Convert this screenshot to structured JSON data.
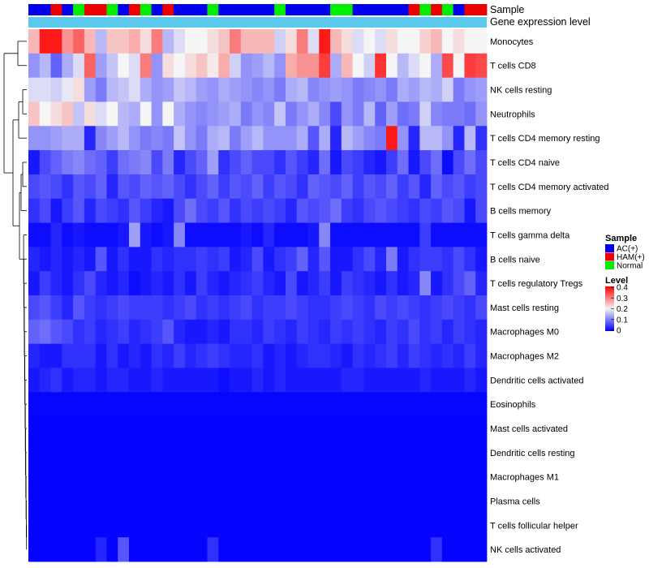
{
  "chart_data": {
    "type": "heatmap",
    "title": "",
    "columns": 41,
    "annotations": {
      "sample": {
        "label": "Sample",
        "values": [
          "AC(+)",
          "AC(+)",
          "HAM(+)",
          "AC(+)",
          "Normal",
          "HAM(+)",
          "HAM(+)",
          "Normal",
          "AC(+)",
          "HAM(+)",
          "Normal",
          "AC(+)",
          "HAM(+)",
          "AC(+)",
          "AC(+)",
          "AC(+)",
          "Normal",
          "AC(+)",
          "AC(+)",
          "AC(+)",
          "AC(+)",
          "AC(+)",
          "Normal",
          "AC(+)",
          "AC(+)",
          "AC(+)",
          "AC(+)",
          "Normal",
          "Normal",
          "AC(+)",
          "AC(+)",
          "AC(+)",
          "AC(+)",
          "AC(+)",
          "HAM(+)",
          "Normal",
          "HAM(+)",
          "Normal",
          "AC(+)",
          "HAM(+)",
          "HAM(+)"
        ]
      },
      "gene_expression": {
        "label": "Gene expression level",
        "color": "#5bc8ee"
      }
    },
    "rows": [
      {
        "label": "Monocytes",
        "values": [
          0.25,
          0.38,
          0.38,
          0.28,
          0.32,
          0.25,
          0.15,
          0.24,
          0.24,
          0.26,
          0.22,
          0.3,
          0.15,
          0.18,
          0.2,
          0.2,
          0.22,
          0.24,
          0.3,
          0.25,
          0.25,
          0.25,
          0.17,
          0.22,
          0.3,
          0.18,
          0.38,
          0.25,
          0.22,
          0.18,
          0.2,
          0.18,
          0.22,
          0.2,
          0.2,
          0.23,
          0.25,
          0.2,
          0.22,
          0.2,
          0.2
        ]
      },
      {
        "label": "T cells CD8",
        "values": [
          0.12,
          0.15,
          0.08,
          0.14,
          0.18,
          0.32,
          0.13,
          0.16,
          0.2,
          0.18,
          0.3,
          0.12,
          0.22,
          0.2,
          0.22,
          0.24,
          0.21,
          0.26,
          0.17,
          0.12,
          0.13,
          0.15,
          0.12,
          0.26,
          0.28,
          0.28,
          0.35,
          0.14,
          0.25,
          0.2,
          0.17,
          0.36,
          0.2,
          0.15,
          0.18,
          0.2,
          0.14,
          0.34,
          0.2,
          0.35,
          0.34
        ]
      },
      {
        "label": "NK cells resting",
        "values": [
          0.18,
          0.18,
          0.17,
          0.19,
          0.22,
          0.13,
          0.1,
          0.15,
          0.16,
          0.18,
          0.14,
          0.12,
          0.13,
          0.16,
          0.15,
          0.13,
          0.12,
          0.14,
          0.13,
          0.12,
          0.11,
          0.12,
          0.1,
          0.14,
          0.15,
          0.11,
          0.12,
          0.13,
          0.12,
          0.1,
          0.11,
          0.12,
          0.1,
          0.14,
          0.13,
          0.15,
          0.14,
          0.17,
          0.1,
          0.12,
          0.13
        ]
      },
      {
        "label": "Neutrophils",
        "values": [
          0.24,
          0.2,
          0.22,
          0.24,
          0.16,
          0.22,
          0.18,
          0.2,
          0.15,
          0.14,
          0.2,
          0.12,
          0.2,
          0.14,
          0.12,
          0.11,
          0.12,
          0.13,
          0.14,
          0.1,
          0.12,
          0.11,
          0.16,
          0.1,
          0.12,
          0.14,
          0.11,
          0.06,
          0.12,
          0.1,
          0.15,
          0.08,
          0.13,
          0.09,
          0.1,
          0.17,
          0.11,
          0.1,
          0.1,
          0.09,
          0.12
        ]
      },
      {
        "label": "T cells CD4 memory resting",
        "values": [
          0.12,
          0.12,
          0.13,
          0.14,
          0.14,
          0.03,
          0.11,
          0.13,
          0.15,
          0.12,
          0.1,
          0.11,
          0.1,
          0.16,
          0.12,
          0.1,
          0.14,
          0.15,
          0.1,
          0.13,
          0.15,
          0.12,
          0.12,
          0.12,
          0.14,
          0.07,
          0.14,
          0.03,
          0.15,
          0.13,
          0.11,
          0.1,
          0.38,
          0.12,
          0.03,
          0.15,
          0.15,
          0.12,
          0.03,
          0.15,
          0.04
        ]
      },
      {
        "label": "T cells CD4 naive",
        "values": [
          0.02,
          0.06,
          0.08,
          0.1,
          0.11,
          0.09,
          0.08,
          0.05,
          0.09,
          0.1,
          0.11,
          0.06,
          0.1,
          0.03,
          0.06,
          0.08,
          0.13,
          0.04,
          0.06,
          0.08,
          0.06,
          0.06,
          0.04,
          0.07,
          0.05,
          0.03,
          0.09,
          0.02,
          0.06,
          0.05,
          0.03,
          0.02,
          0.05,
          0.09,
          0.02,
          0.06,
          0.09,
          0.01,
          0.06,
          0.09,
          0.06
        ]
      },
      {
        "label": "T cells CD4 memory activated",
        "values": [
          0.06,
          0.07,
          0.06,
          0.04,
          0.07,
          0.06,
          0.08,
          0.03,
          0.07,
          0.06,
          0.08,
          0.07,
          0.08,
          0.06,
          0.04,
          0.06,
          0.08,
          0.05,
          0.07,
          0.06,
          0.08,
          0.05,
          0.07,
          0.06,
          0.04,
          0.08,
          0.07,
          0.06,
          0.08,
          0.05,
          0.07,
          0.06,
          0.08,
          0.05,
          0.07,
          0.03,
          0.08,
          0.06,
          0.07,
          0.05,
          0.06
        ]
      },
      {
        "label": "B cells memory",
        "values": [
          0.04,
          0.06,
          0.02,
          0.05,
          0.07,
          0.03,
          0.06,
          0.05,
          0.04,
          0.07,
          0.05,
          0.03,
          0.02,
          0.06,
          0.09,
          0.06,
          0.05,
          0.07,
          0.04,
          0.06,
          0.05,
          0.06,
          0.05,
          0.03,
          0.07,
          0.06,
          0.07,
          0.09,
          0.05,
          0.04,
          0.06,
          0.07,
          0.06,
          0.05,
          0.04,
          0.06,
          0.05,
          0.07,
          0.06,
          0.02,
          0.06
        ]
      },
      {
        "label": "T cells gamma delta",
        "values": [
          0.01,
          0.01,
          0.03,
          0.01,
          0.02,
          0.01,
          0.01,
          0.01,
          0.02,
          0.13,
          0.02,
          0.01,
          0.02,
          0.11,
          0.01,
          0.01,
          0.01,
          0.01,
          0.01,
          0.02,
          0.01,
          0.03,
          0.01,
          0.01,
          0.01,
          0.02,
          0.11,
          0.01,
          0.01,
          0.01,
          0.01,
          0.01,
          0.01,
          0.01,
          0.01,
          0.05,
          0.01,
          0.01,
          0.01,
          0.01,
          0.01
        ]
      },
      {
        "label": "B cells naive",
        "values": [
          0.03,
          0.02,
          0.03,
          0.02,
          0.03,
          0.02,
          0.07,
          0.02,
          0.04,
          0.02,
          0.02,
          0.04,
          0.03,
          0.04,
          0.04,
          0.05,
          0.04,
          0.05,
          0.02,
          0.03,
          0.06,
          0.02,
          0.04,
          0.05,
          0.08,
          0.03,
          0.07,
          0.02,
          0.02,
          0.04,
          0.06,
          0.03,
          0.1,
          0.02,
          0.04,
          0.05,
          0.05,
          0.04,
          0.06,
          0.04,
          0.02
        ]
      },
      {
        "label": "T cells regulatory  Tregs",
        "values": [
          0.02,
          0.05,
          0.03,
          0.02,
          0.04,
          0.06,
          0.03,
          0.02,
          0.03,
          0.01,
          0.02,
          0.03,
          0.02,
          0.04,
          0.02,
          0.05,
          0.03,
          0.02,
          0.03,
          0.04,
          0.05,
          0.03,
          0.02,
          0.06,
          0.02,
          0.03,
          0.05,
          0.02,
          0.05,
          0.04,
          0.03,
          0.02,
          0.04,
          0.02,
          0.03,
          0.11,
          0.02,
          0.04,
          0.06,
          0.08,
          0.03
        ]
      },
      {
        "label": "Mast cells resting",
        "values": [
          0.06,
          0.07,
          0.05,
          0.03,
          0.07,
          0.05,
          0.04,
          0.05,
          0.06,
          0.05,
          0.05,
          0.05,
          0.04,
          0.05,
          0.06,
          0.04,
          0.05,
          0.04,
          0.05,
          0.06,
          0.04,
          0.05,
          0.05,
          0.06,
          0.05,
          0.04,
          0.04,
          0.05,
          0.06,
          0.05,
          0.04,
          0.06,
          0.05,
          0.06,
          0.05,
          0.04,
          0.05,
          0.06,
          0.05,
          0.04,
          0.06
        ]
      },
      {
        "label": "Macrophages M0",
        "values": [
          0.08,
          0.09,
          0.07,
          0.06,
          0.04,
          0.05,
          0.03,
          0.04,
          0.05,
          0.03,
          0.04,
          0.05,
          0.07,
          0.03,
          0.02,
          0.02,
          0.03,
          0.02,
          0.04,
          0.04,
          0.03,
          0.05,
          0.04,
          0.03,
          0.05,
          0.04,
          0.03,
          0.05,
          0.04,
          0.05,
          0.04,
          0.03,
          0.05,
          0.04,
          0.06,
          0.04,
          0.05,
          0.03,
          0.05,
          0.04,
          0.03
        ]
      },
      {
        "label": "Macrophages M2",
        "values": [
          0.03,
          0.02,
          0.02,
          0.04,
          0.04,
          0.04,
          0.02,
          0.04,
          0.02,
          0.03,
          0.02,
          0.04,
          0.03,
          0.05,
          0.03,
          0.04,
          0.05,
          0.04,
          0.03,
          0.03,
          0.04,
          0.02,
          0.03,
          0.02,
          0.03,
          0.04,
          0.04,
          0.03,
          0.02,
          0.04,
          0.03,
          0.04,
          0.05,
          0.03,
          0.05,
          0.04,
          0.03,
          0.04,
          0.03,
          0.05,
          0.03
        ]
      },
      {
        "label": "Dendritic cells activated",
        "values": [
          0.02,
          0.03,
          0.04,
          0.02,
          0.03,
          0.03,
          0.02,
          0.03,
          0.03,
          0.02,
          0.02,
          0.03,
          0.02,
          0.02,
          0.02,
          0.02,
          0.02,
          0.01,
          0.02,
          0.02,
          0.03,
          0.02,
          0.03,
          0.02,
          0.02,
          0.02,
          0.02,
          0.02,
          0.03,
          0.03,
          0.02,
          0.02,
          0.02,
          0.02,
          0.02,
          0.03,
          0.02,
          0.02,
          0.02,
          0.03,
          0.02
        ]
      },
      {
        "label": "Eosinophils",
        "values": [
          0.005,
          0.005,
          0.005,
          0.005,
          0.005,
          0.005,
          0.005,
          0.005,
          0.005,
          0.005,
          0.005,
          0.005,
          0.005,
          0.005,
          0.005,
          0.005,
          0.005,
          0.005,
          0.005,
          0.005,
          0.005,
          0.005,
          0.005,
          0.005,
          0.005,
          0.005,
          0.005,
          0.005,
          0.005,
          0.005,
          0.005,
          0.005,
          0.005,
          0.005,
          0.005,
          0.005,
          0.005,
          0.005,
          0.005,
          0.005,
          0.005
        ]
      },
      {
        "label": "Mast cells activated",
        "values": [
          0.004,
          0.004,
          0.004,
          0.004,
          0.004,
          0.004,
          0.004,
          0.004,
          0.004,
          0.004,
          0.004,
          0.004,
          0.004,
          0.004,
          0.004,
          0.004,
          0.004,
          0.004,
          0.004,
          0.004,
          0.004,
          0.004,
          0.004,
          0.004,
          0.004,
          0.004,
          0.004,
          0.004,
          0.004,
          0.004,
          0.004,
          0.004,
          0.004,
          0.004,
          0.004,
          0.004,
          0.004,
          0.004,
          0.004,
          0.004,
          0.004
        ]
      },
      {
        "label": "Dendritic cells resting",
        "values": [
          0.004,
          0.004,
          0.004,
          0.004,
          0.004,
          0.004,
          0.004,
          0.004,
          0.004,
          0.004,
          0.004,
          0.004,
          0.004,
          0.004,
          0.004,
          0.004,
          0.004,
          0.004,
          0.004,
          0.004,
          0.004,
          0.004,
          0.004,
          0.004,
          0.004,
          0.004,
          0.004,
          0.004,
          0.004,
          0.004,
          0.004,
          0.004,
          0.004,
          0.004,
          0.004,
          0.004,
          0.004,
          0.004,
          0.004,
          0.004,
          0.004
        ]
      },
      {
        "label": "Macrophages M1",
        "values": [
          0.004,
          0.004,
          0.004,
          0.004,
          0.004,
          0.004,
          0.004,
          0.004,
          0.004,
          0.004,
          0.004,
          0.004,
          0.004,
          0.004,
          0.004,
          0.004,
          0.004,
          0.004,
          0.004,
          0.004,
          0.004,
          0.004,
          0.004,
          0.004,
          0.004,
          0.004,
          0.004,
          0.004,
          0.004,
          0.004,
          0.004,
          0.004,
          0.004,
          0.004,
          0.004,
          0.004,
          0.004,
          0.004,
          0.004,
          0.004,
          0.004
        ]
      },
      {
        "label": "Plasma cells",
        "values": [
          0.004,
          0.004,
          0.004,
          0.004,
          0.004,
          0.004,
          0.004,
          0.004,
          0.004,
          0.004,
          0.004,
          0.004,
          0.004,
          0.004,
          0.004,
          0.004,
          0.004,
          0.004,
          0.004,
          0.004,
          0.004,
          0.004,
          0.004,
          0.004,
          0.004,
          0.004,
          0.004,
          0.004,
          0.004,
          0.004,
          0.004,
          0.004,
          0.004,
          0.004,
          0.004,
          0.004,
          0.004,
          0.004,
          0.004,
          0.004,
          0.004
        ]
      },
      {
        "label": "T cells follicular helper",
        "values": [
          0.004,
          0.004,
          0.004,
          0.004,
          0.004,
          0.004,
          0.004,
          0.004,
          0.004,
          0.004,
          0.004,
          0.004,
          0.004,
          0.004,
          0.004,
          0.004,
          0.004,
          0.004,
          0.004,
          0.004,
          0.004,
          0.004,
          0.004,
          0.004,
          0.004,
          0.004,
          0.004,
          0.004,
          0.004,
          0.004,
          0.004,
          0.004,
          0.004,
          0.004,
          0.004,
          0.004,
          0.004,
          0.004,
          0.004,
          0.004,
          0.004
        ]
      },
      {
        "label": "NK cells activated",
        "values": [
          0.004,
          0.004,
          0.004,
          0.004,
          0.004,
          0.004,
          0.03,
          0.004,
          0.07,
          0.004,
          0.004,
          0.004,
          0.004,
          0.004,
          0.004,
          0.004,
          0.04,
          0.004,
          0.004,
          0.004,
          0.004,
          0.004,
          0.004,
          0.004,
          0.004,
          0.004,
          0.004,
          0.004,
          0.004,
          0.004,
          0.004,
          0.004,
          0.004,
          0.004,
          0.004,
          0.004,
          0.04,
          0.004,
          0.004,
          0.004,
          0.004
        ]
      }
    ],
    "color_scale": {
      "min": 0,
      "mid": 0.2,
      "max": 0.4,
      "low_color": "#0000ff",
      "mid_color": "#f5f5f5",
      "high_color": "#ff0000",
      "ticks": [
        "0.4",
        "0.3",
        "0.2",
        "0.1",
        "0"
      ]
    },
    "legends": {
      "sample": {
        "title": "Sample",
        "items": [
          {
            "label": "AC(+)",
            "color": "#0000ee"
          },
          {
            "label": "HAM(+)",
            "color": "#ee0000"
          },
          {
            "label": "Normal",
            "color": "#00ee00"
          }
        ]
      },
      "level": {
        "title": "Level"
      }
    },
    "dendrogram": "rows clustered; tree drawn on left side"
  }
}
